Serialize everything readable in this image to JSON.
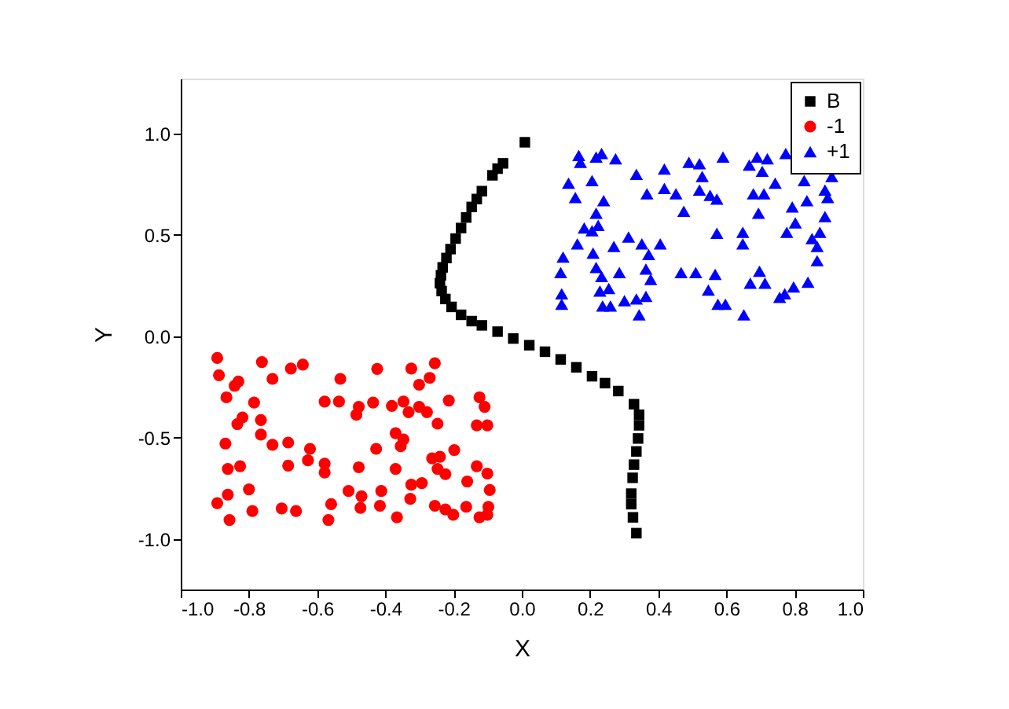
{
  "chart_data": {
    "type": "scatter",
    "xlabel": "X",
    "ylabel": "Y",
    "xlim": [
      -1.0,
      1.0
    ],
    "ylim": [
      -1.25,
      1.27
    ],
    "xticks": [
      {
        "value": -1.0,
        "label": "-1.0"
      },
      {
        "value": -0.8,
        "label": "-0.8"
      },
      {
        "value": -0.6,
        "label": "-0.6"
      },
      {
        "value": -0.4,
        "label": "-0.4"
      },
      {
        "value": -0.2,
        "label": "-0.2"
      },
      {
        "value": 0.0,
        "label": "0.0"
      },
      {
        "value": 0.2,
        "label": "0.2"
      },
      {
        "value": 0.4,
        "label": "0.4"
      },
      {
        "value": 0.6,
        "label": "0.6"
      },
      {
        "value": 0.8,
        "label": "0.8"
      },
      {
        "value": 1.0,
        "label": "1.0"
      }
    ],
    "yticks": [
      {
        "value": -1.0,
        "label": "-1.0"
      },
      {
        "value": -0.5,
        "label": "-0.5"
      },
      {
        "value": 0.0,
        "label": "0.0"
      },
      {
        "value": 0.5,
        "label": "0.5"
      },
      {
        "value": 1.0,
        "label": "1.0"
      }
    ],
    "grid": false,
    "legend": "top right",
    "series": [
      {
        "name": "B",
        "color": "#000000",
        "marker": "square",
        "x": [
          0.009,
          -0.055,
          -0.071,
          -0.086,
          -0.117,
          -0.132,
          -0.147,
          -0.163,
          -0.178,
          -0.194,
          -0.209,
          -0.221,
          -0.232,
          -0.237,
          -0.24,
          -0.235,
          -0.224,
          -0.206,
          -0.178,
          -0.147,
          -0.117,
          -0.071,
          -0.025,
          0.022,
          0.068,
          0.114,
          0.16,
          0.206,
          0.244,
          0.283,
          0.329,
          0.344,
          0.344,
          0.341,
          0.336,
          0.329,
          0.325,
          0.321,
          0.321,
          0.326,
          0.336
        ],
        "values": [
          0.956,
          0.852,
          0.826,
          0.793,
          0.715,
          0.676,
          0.637,
          0.585,
          0.533,
          0.481,
          0.429,
          0.385,
          0.339,
          0.3,
          0.261,
          0.222,
          0.183,
          0.144,
          0.105,
          0.074,
          0.053,
          0.022,
          -0.012,
          -0.045,
          -0.077,
          -0.115,
          -0.154,
          -0.198,
          -0.232,
          -0.271,
          -0.336,
          -0.388,
          -0.44,
          -0.505,
          -0.569,
          -0.634,
          -0.699,
          -0.777,
          -0.829,
          -0.894,
          -0.972
        ]
      },
      {
        "name": "-1",
        "color": "#ff0000",
        "marker": "circle",
        "x": [
          -0.893,
          -0.888,
          -0.762,
          -0.677,
          -0.642,
          -0.731,
          -0.831,
          -0.842,
          -0.866,
          -0.785,
          -0.532,
          -0.424,
          -0.324,
          -0.255,
          -0.27,
          -0.301,
          -0.578,
          -0.536,
          -0.478,
          -0.485,
          -0.436,
          -0.381,
          -0.347,
          -0.332,
          -0.301,
          -0.278,
          -0.247,
          -0.214,
          -0.124,
          -0.109,
          -0.132,
          -0.101,
          -0.819,
          -0.834,
          -0.765,
          -0.765,
          -0.869,
          -0.731,
          -0.685,
          -0.621,
          -0.627,
          -0.685,
          -0.862,
          -0.826,
          -0.578,
          -0.578,
          -0.478,
          -0.427,
          -0.37,
          -0.347,
          -0.355,
          -0.37,
          -0.263,
          -0.24,
          -0.247,
          -0.224,
          -0.198,
          -0.132,
          -0.101,
          -0.16,
          -0.094,
          -0.324,
          -0.293,
          -0.412,
          -0.508,
          -0.47,
          -0.473,
          -0.416,
          -0.327,
          -0.366,
          -0.559,
          -0.567,
          -0.662,
          -0.704,
          -0.79,
          -0.857,
          -0.893,
          -0.862,
          -0.8,
          -0.255,
          -0.224,
          -0.201,
          -0.163,
          -0.124,
          -0.098,
          -0.101
        ],
        "values": [
          -0.108,
          -0.193,
          -0.128,
          -0.16,
          -0.141,
          -0.211,
          -0.224,
          -0.245,
          -0.302,
          -0.328,
          -0.211,
          -0.162,
          -0.16,
          -0.134,
          -0.206,
          -0.24,
          -0.323,
          -0.323,
          -0.349,
          -0.388,
          -0.328,
          -0.344,
          -0.323,
          -0.375,
          -0.349,
          -0.375,
          -0.432,
          -0.318,
          -0.302,
          -0.349,
          -0.44,
          -0.44,
          -0.401,
          -0.434,
          -0.414,
          -0.486,
          -0.53,
          -0.536,
          -0.525,
          -0.556,
          -0.613,
          -0.639,
          -0.655,
          -0.642,
          -0.629,
          -0.673,
          -0.647,
          -0.556,
          -0.479,
          -0.51,
          -0.543,
          -0.655,
          -0.603,
          -0.595,
          -0.655,
          -0.681,
          -0.562,
          -0.642,
          -0.678,
          -0.717,
          -0.759,
          -0.733,
          -0.725,
          -0.764,
          -0.764,
          -0.79,
          -0.847,
          -0.837,
          -0.803,
          -0.894,
          -0.829,
          -0.907,
          -0.863,
          -0.85,
          -0.863,
          -0.907,
          -0.824,
          -0.782,
          -0.756,
          -0.837,
          -0.855,
          -0.881,
          -0.842,
          -0.894,
          -0.842,
          -0.881
        ]
      },
      {
        "name": "+1",
        "color": "#0000ff",
        "marker": "triangle",
        "x": [
          0.167,
          0.172,
          0.218,
          0.234,
          0.275,
          0.137,
          0.206,
          0.157,
          0.24,
          0.218,
          0.183,
          0.206,
          0.224,
          0.163,
          0.209,
          0.121,
          0.114,
          0.218,
          0.234,
          0.117,
          0.117,
          0.229,
          0.255,
          0.237,
          0.26,
          0.301,
          0.336,
          0.364,
          0.344,
          0.27,
          0.313,
          0.352,
          0.372,
          0.406,
          0.364,
          0.378,
          0.286,
          0.336,
          0.367,
          0.418,
          0.418,
          0.452,
          0.475,
          0.49,
          0.521,
          0.529,
          0.521,
          0.552,
          0.572,
          0.59,
          0.572,
          0.467,
          0.51,
          0.567,
          0.547,
          0.575,
          0.597,
          0.648,
          0.648,
          0.651,
          0.667,
          0.69,
          0.72,
          0.705,
          0.679,
          0.71,
          0.694,
          0.743,
          0.774,
          0.697,
          0.713,
          0.67,
          0.756,
          0.771,
          0.797,
          0.839,
          0.777,
          0.802,
          0.793,
          0.836,
          0.828,
          0.889,
          0.909,
          0.897,
          0.889,
          0.874,
          0.851,
          0.866,
          0.866
        ],
        "values": [
          0.891,
          0.857,
          0.883,
          0.901,
          0.875,
          0.754,
          0.767,
          0.684,
          0.668,
          0.606,
          0.533,
          0.52,
          0.546,
          0.455,
          0.409,
          0.39,
          0.313,
          0.339,
          0.294,
          0.209,
          0.157,
          0.222,
          0.235,
          0.149,
          0.149,
          0.175,
          0.183,
          0.196,
          0.105,
          0.442,
          0.489,
          0.455,
          0.403,
          0.455,
          0.331,
          0.279,
          0.313,
          0.798,
          0.702,
          0.824,
          0.728,
          0.702,
          0.616,
          0.857,
          0.85,
          0.787,
          0.72,
          0.694,
          0.676,
          0.883,
          0.507,
          0.313,
          0.313,
          0.305,
          0.227,
          0.157,
          0.157,
          0.512,
          0.455,
          0.105,
          0.844,
          0.883,
          0.875,
          0.813,
          0.702,
          0.702,
          0.606,
          0.754,
          0.901,
          0.32,
          0.261,
          0.261,
          0.191,
          0.209,
          0.243,
          0.266,
          0.512,
          0.559,
          0.637,
          0.668,
          0.767,
          0.72,
          0.787,
          0.684,
          0.59,
          0.512,
          0.481,
          0.442,
          0.372
        ]
      }
    ]
  }
}
